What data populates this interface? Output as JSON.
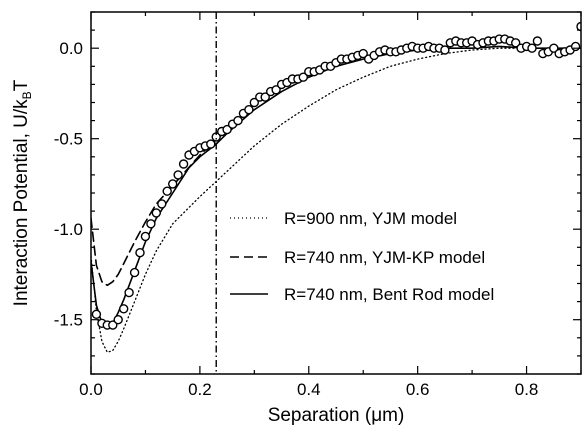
{
  "chart_data": {
    "type": "scatter",
    "xlabel": "Separation (μm)",
    "ylabel": "Interaction Potential, U/k",
    "ylabel_sub": "B",
    "ylabel_tail": "T",
    "xlim": [
      0.0,
      0.9
    ],
    "ylim": [
      -1.8,
      0.2
    ],
    "x_ticks": [
      {
        "value": 0.0,
        "label": "0.0"
      },
      {
        "value": 0.2,
        "label": "0.2"
      },
      {
        "value": 0.4,
        "label": "0.4"
      },
      {
        "value": 0.6,
        "label": "0.6"
      },
      {
        "value": 0.8,
        "label": "0.8"
      }
    ],
    "y_ticks": [
      {
        "value": 0.0,
        "label": "0.0"
      },
      {
        "value": -0.5,
        "label": "-0.5"
      },
      {
        "value": -1.0,
        "label": "-1.0"
      },
      {
        "value": -1.5,
        "label": "-1.5"
      }
    ],
    "vertical_line_x": 0.23,
    "legend_placement": "center-right",
    "series": [
      {
        "name": "R=900 nm, YJM model",
        "style": "dotted",
        "x": [
          0.0,
          0.01,
          0.02,
          0.03,
          0.04,
          0.05,
          0.06,
          0.08,
          0.1,
          0.12,
          0.15,
          0.2,
          0.25,
          0.3,
          0.35,
          0.4,
          0.45,
          0.5,
          0.55,
          0.6,
          0.65,
          0.7,
          0.75,
          0.8,
          0.85,
          0.9
        ],
        "y": [
          -1.15,
          -1.45,
          -1.62,
          -1.68,
          -1.67,
          -1.62,
          -1.55,
          -1.4,
          -1.25,
          -1.12,
          -0.97,
          -0.82,
          -0.68,
          -0.54,
          -0.42,
          -0.32,
          -0.23,
          -0.16,
          -0.1,
          -0.06,
          -0.03,
          -0.01,
          0.0,
          0.0,
          0.0,
          0.0
        ]
      },
      {
        "name": "R=740 nm, YJM-KP model",
        "style": "dashed",
        "x": [
          0.0,
          0.01,
          0.02,
          0.03,
          0.04,
          0.05,
          0.06,
          0.08,
          0.1,
          0.12,
          0.15,
          0.2,
          0.25
        ],
        "y": [
          -0.94,
          -1.2,
          -1.29,
          -1.31,
          -1.29,
          -1.25,
          -1.19,
          -1.07,
          -0.96,
          -0.86,
          -0.76,
          -0.59,
          -0.45
        ]
      },
      {
        "name": "R=740 nm, Bent Rod model",
        "style": "solid",
        "x": [
          0.0,
          0.01,
          0.02,
          0.03,
          0.04,
          0.05,
          0.06,
          0.08,
          0.1,
          0.12,
          0.15,
          0.18,
          0.2,
          0.23,
          0.25,
          0.3,
          0.35,
          0.4,
          0.45,
          0.5,
          0.55,
          0.6,
          0.65,
          0.7,
          0.75,
          0.8,
          0.85,
          0.9
        ],
        "y": [
          -1.18,
          -1.42,
          -1.52,
          -1.54,
          -1.52,
          -1.46,
          -1.39,
          -1.23,
          -1.07,
          -0.94,
          -0.8,
          -0.66,
          -0.6,
          -0.53,
          -0.47,
          -0.34,
          -0.24,
          -0.16,
          -0.1,
          -0.06,
          -0.03,
          -0.01,
          0.0,
          0.0,
          0.01,
          0.0,
          0.0,
          0.0
        ]
      },
      {
        "name": "data",
        "style": "open-circle",
        "x": [
          0.01,
          0.02,
          0.03,
          0.04,
          0.05,
          0.06,
          0.07,
          0.08,
          0.09,
          0.1,
          0.11,
          0.12,
          0.13,
          0.14,
          0.15,
          0.16,
          0.17,
          0.18,
          0.19,
          0.2,
          0.21,
          0.22,
          0.23,
          0.24,
          0.25,
          0.26,
          0.27,
          0.28,
          0.29,
          0.3,
          0.31,
          0.32,
          0.33,
          0.34,
          0.35,
          0.36,
          0.37,
          0.38,
          0.39,
          0.4,
          0.41,
          0.42,
          0.43,
          0.44,
          0.45,
          0.46,
          0.47,
          0.48,
          0.49,
          0.5,
          0.51,
          0.52,
          0.53,
          0.54,
          0.55,
          0.56,
          0.57,
          0.58,
          0.59,
          0.6,
          0.61,
          0.62,
          0.63,
          0.64,
          0.65,
          0.66,
          0.67,
          0.68,
          0.69,
          0.7,
          0.71,
          0.72,
          0.73,
          0.74,
          0.75,
          0.76,
          0.77,
          0.78,
          0.79,
          0.8,
          0.81,
          0.82,
          0.83,
          0.84,
          0.85,
          0.86,
          0.87,
          0.88,
          0.89,
          0.9
        ],
        "y": [
          -1.47,
          -1.52,
          -1.53,
          -1.53,
          -1.5,
          -1.44,
          -1.35,
          -1.24,
          -1.13,
          -1.04,
          -0.97,
          -0.91,
          -0.86,
          -0.79,
          -0.75,
          -0.7,
          -0.64,
          -0.59,
          -0.57,
          -0.55,
          -0.54,
          -0.53,
          -0.49,
          -0.46,
          -0.45,
          -0.42,
          -0.4,
          -0.36,
          -0.34,
          -0.3,
          -0.27,
          -0.27,
          -0.24,
          -0.23,
          -0.2,
          -0.19,
          -0.17,
          -0.17,
          -0.16,
          -0.13,
          -0.13,
          -0.12,
          -0.1,
          -0.1,
          -0.08,
          -0.06,
          -0.06,
          -0.05,
          -0.04,
          -0.03,
          -0.06,
          -0.04,
          -0.02,
          -0.01,
          -0.02,
          -0.02,
          -0.01,
          0.0,
          0.01,
          0.0,
          0.0,
          0.01,
          0.0,
          0.0,
          -0.01,
          0.03,
          0.04,
          0.03,
          0.03,
          0.04,
          0.02,
          0.03,
          0.04,
          0.04,
          0.05,
          0.05,
          0.04,
          0.03,
          0.0,
          0.01,
          0.0,
          0.04,
          -0.03,
          -0.02,
          0.0,
          -0.03,
          -0.02,
          -0.01,
          0.01,
          0.12
        ]
      }
    ]
  }
}
